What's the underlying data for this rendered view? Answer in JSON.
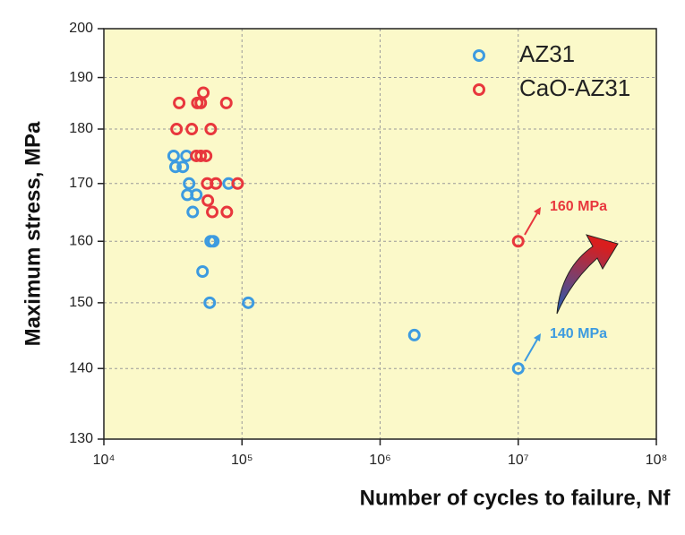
{
  "chart_data": {
    "type": "scatter",
    "x_label": "Number of cycles to failure, Nf",
    "y_label": "Maximum stress, MPa",
    "xscale": "log",
    "yscale": "log",
    "xlim": [
      10000,
      100000000
    ],
    "ylim": [
      130,
      200
    ],
    "xticks": [
      {
        "value": 10000,
        "label": "10⁴"
      },
      {
        "value": 100000,
        "label": "10⁵"
      },
      {
        "value": 1000000,
        "label": "10⁶"
      },
      {
        "value": 10000000,
        "label": "10⁷"
      },
      {
        "value": 100000000,
        "label": "10⁸"
      }
    ],
    "yticks": [
      130,
      140,
      150,
      160,
      170,
      180,
      190,
      200
    ],
    "grid": true,
    "background": "#fbf9c9",
    "legend": "upper right",
    "series": [
      {
        "name": "AZ31",
        "color": "#3d9be0",
        "x": [
          32000,
          33000,
          37300,
          39600,
          41400,
          40200,
          46700,
          44000,
          51800,
          59300,
          62000,
          58400,
          111000,
          80000,
          1770000,
          10000000
        ],
        "values": [
          175,
          173,
          173,
          175,
          170,
          168,
          168,
          165,
          155,
          160,
          160,
          150,
          150,
          170,
          145,
          140
        ]
      },
      {
        "name": "CaO-AZ31",
        "color": "#e8373d",
        "x": [
          35100,
          47500,
          50300,
          52500,
          77000,
          33600,
          43300,
          59400,
          46700,
          50300,
          55000,
          56000,
          64700,
          93000,
          56600,
          60900,
          77700,
          10000000
        ],
        "values": [
          185,
          185,
          185,
          187,
          185,
          180,
          180,
          180,
          175,
          175,
          175,
          170,
          170,
          170,
          167,
          165,
          165,
          160
        ]
      }
    ],
    "annotations": [
      {
        "text": "160 MPa",
        "color": "#e8373d"
      },
      {
        "text": "140 MPa",
        "color": "#3d9be0"
      }
    ]
  }
}
